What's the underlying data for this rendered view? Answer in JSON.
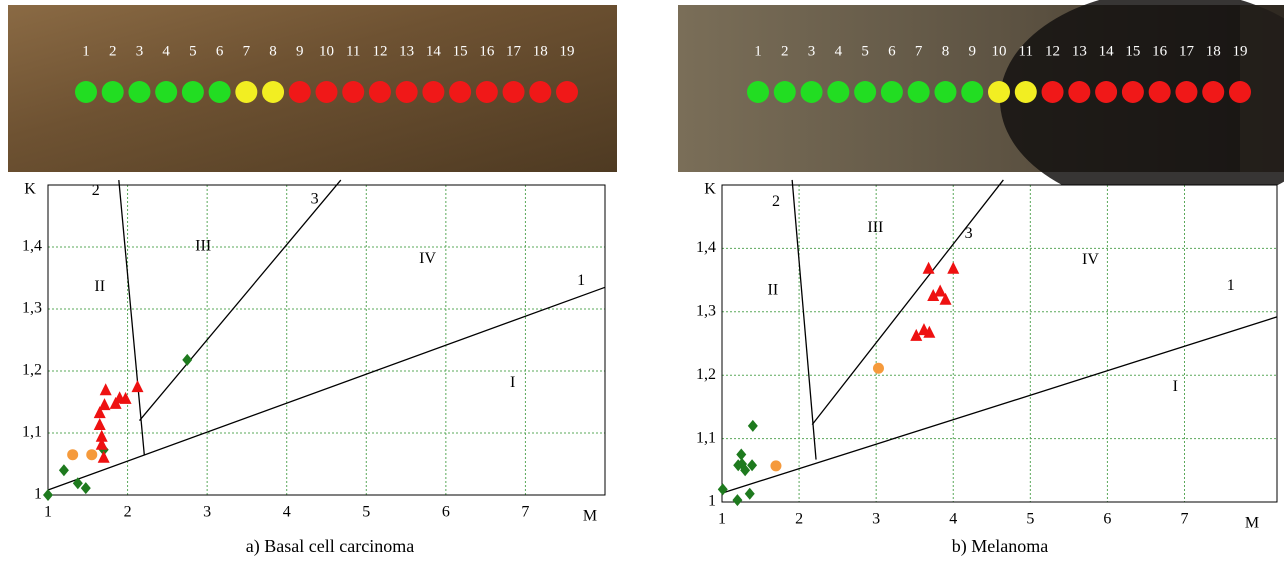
{
  "chart_data": [
    {
      "type": "scatter",
      "caption": "a) Basal cell carcinoma",
      "xlabel": "M",
      "ylabel": "K",
      "strip": {
        "numbers": [
          1,
          2,
          3,
          4,
          5,
          6,
          7,
          8,
          9,
          10,
          11,
          12,
          13,
          14,
          15,
          16,
          17,
          18,
          19
        ],
        "colors": [
          "#22dd22",
          "#22dd22",
          "#22dd22",
          "#22dd22",
          "#22dd22",
          "#22dd22",
          "#f2ee22",
          "#f2ee22",
          "#f01818",
          "#f01818",
          "#f01818",
          "#f01818",
          "#f01818",
          "#f01818",
          "#f01818",
          "#f01818",
          "#f01818",
          "#f01818",
          "#f01818"
        ]
      },
      "xlim": [
        1,
        8
      ],
      "ylim": [
        1,
        1.5
      ],
      "grid": true,
      "grid_color": "#5aa85a",
      "xticks": [
        1,
        2,
        3,
        4,
        5,
        6,
        7
      ],
      "yticks": [
        1,
        {
          "value": 1.1,
          "label": "1,1"
        },
        {
          "value": 1.2,
          "label": "1,2"
        },
        {
          "value": 1.3,
          "label": "1,3"
        },
        {
          "value": 1.4,
          "label": "1,4"
        }
      ],
      "lines": [
        {
          "label": "1",
          "x": [
            1,
            8
          ],
          "values": [
            1.008,
            1.335
          ],
          "label_at": [
            7.7,
            1.345
          ]
        },
        {
          "label": "2",
          "x": [
            1.89,
            2.21
          ],
          "values": [
            1.508,
            1.065
          ],
          "label_at": [
            1.6,
            1.49
          ]
        },
        {
          "label": "3",
          "x": [
            2.15,
            4.68
          ],
          "values": [
            1.12,
            1.508
          ],
          "label_at": [
            4.35,
            1.476
          ]
        }
      ],
      "regions": [
        {
          "label": "I",
          "at": [
            6.84,
            1.18
          ]
        },
        {
          "label": "II",
          "at": [
            1.65,
            1.335
          ]
        },
        {
          "label": "III",
          "at": [
            2.95,
            1.4
          ]
        },
        {
          "label": "IV",
          "at": [
            5.77,
            1.38
          ]
        }
      ],
      "series": [
        {
          "marker": "diamond",
          "color": "#1e7a1e",
          "x": [
            1.0,
            1.2,
            1.375,
            1.475,
            1.7,
            2.75
          ],
          "values": [
            1.0,
            1.04,
            1.019,
            1.011,
            1.073,
            1.218
          ]
        },
        {
          "marker": "circle",
          "color": "#f59a3c",
          "x": [
            1.31,
            1.55
          ],
          "values": [
            1.065,
            1.065
          ]
        },
        {
          "marker": "triangle",
          "color": "#ee1111",
          "x": [
            1.725,
            1.71,
            1.65,
            1.65,
            1.675,
            1.7,
            1.675,
            1.85,
            1.9,
            1.975,
            2.125
          ],
          "values": [
            1.169,
            1.145,
            1.132,
            1.113,
            1.094,
            1.06,
            1.081,
            1.147,
            1.156,
            1.155,
            1.174
          ]
        }
      ]
    },
    {
      "type": "scatter",
      "caption": "b) Melanoma",
      "xlabel": "M",
      "ylabel": "K",
      "strip": {
        "numbers": [
          1,
          2,
          3,
          4,
          5,
          6,
          7,
          8,
          9,
          10,
          11,
          12,
          13,
          14,
          15,
          16,
          17,
          18,
          19
        ],
        "colors": [
          "#22dd22",
          "#22dd22",
          "#22dd22",
          "#22dd22",
          "#22dd22",
          "#22dd22",
          "#22dd22",
          "#22dd22",
          "#22dd22",
          "#f2ee22",
          "#f2ee22",
          "#f01818",
          "#f01818",
          "#f01818",
          "#f01818",
          "#f01818",
          "#f01818",
          "#f01818",
          "#f01818"
        ]
      },
      "xlim": [
        1,
        8.2
      ],
      "ylim": [
        1,
        1.5
      ],
      "grid": true,
      "grid_color": "#5aa85a",
      "xticks": [
        1,
        2,
        3,
        4,
        5,
        6,
        7
      ],
      "yticks": [
        1,
        {
          "value": 1.1,
          "label": "1,1"
        },
        {
          "value": 1.2,
          "label": "1,2"
        },
        {
          "value": 1.3,
          "label": "1,3"
        },
        {
          "value": 1.4,
          "label": "1,4"
        }
      ],
      "lines": [
        {
          "label": "1",
          "x": [
            1,
            8.2
          ],
          "values": [
            1.014,
            1.292
          ],
          "label_at": [
            7.6,
            1.34
          ]
        },
        {
          "label": "2",
          "x": [
            1.91,
            2.22
          ],
          "values": [
            1.508,
            1.067
          ],
          "label_at": [
            1.7,
            1.473
          ]
        },
        {
          "label": "3",
          "x": [
            2.17,
            4.65
          ],
          "values": [
            1.122,
            1.508
          ],
          "label_at": [
            4.2,
            1.422
          ]
        }
      ],
      "regions": [
        {
          "label": "I",
          "at": [
            6.88,
            1.181
          ]
        },
        {
          "label": "II",
          "at": [
            1.66,
            1.333
          ]
        },
        {
          "label": "III",
          "at": [
            2.99,
            1.432
          ]
        },
        {
          "label": "IV",
          "at": [
            5.78,
            1.381
          ]
        }
      ],
      "series": [
        {
          "marker": "diamond",
          "color": "#1e7a1e",
          "x": [
            1.01,
            1.2,
            1.21,
            1.25,
            1.3,
            1.39,
            1.4,
            1.36,
            1.26
          ],
          "values": [
            1.02,
            1.003,
            1.058,
            1.075,
            1.05,
            1.058,
            1.12,
            1.013,
            1.06
          ]
        },
        {
          "marker": "circle",
          "color": "#f59a3c",
          "x": [
            1.7,
            3.03
          ],
          "values": [
            1.057,
            1.211
          ]
        },
        {
          "marker": "triangle",
          "color": "#ee1111",
          "x": [
            3.68,
            4.0,
            3.52,
            3.62,
            3.69,
            3.74,
            3.83,
            3.9
          ],
          "values": [
            1.368,
            1.368,
            1.262,
            1.271,
            1.267,
            1.325,
            1.332,
            1.319
          ]
        }
      ]
    }
  ]
}
